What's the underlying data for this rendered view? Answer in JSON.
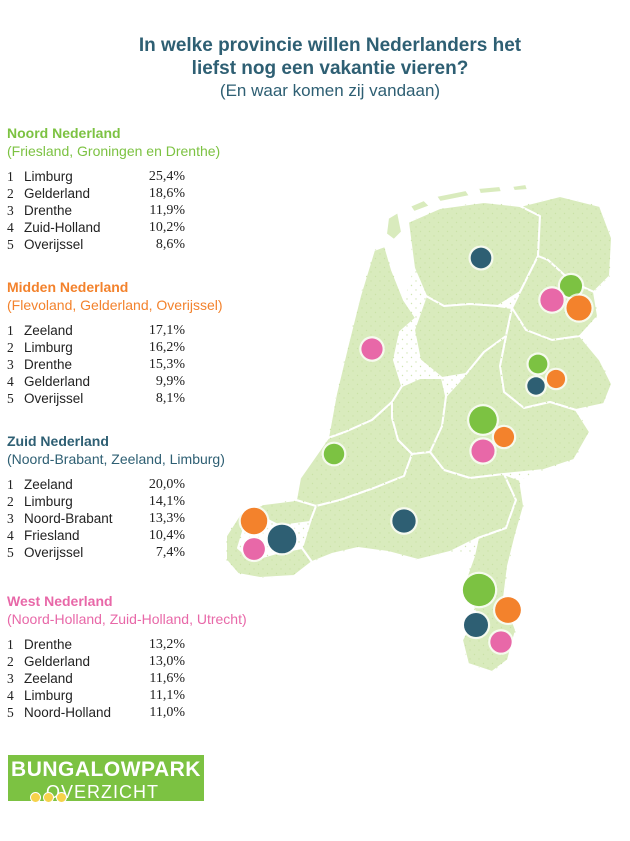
{
  "title": {
    "line1": "In welke provincie willen Nederlanders het",
    "line2": "liefst nog een vakantie vieren?",
    "line3": "(En waar komen zij vandaan)"
  },
  "colors": {
    "noord": "#7cc242",
    "midden": "#f3822c",
    "zuid": "#2e5f73",
    "west": "#e868a8",
    "land": "#d9ebbd",
    "border": "#ffffff"
  },
  "regions": [
    {
      "name": "Noord Nederland",
      "subtitle": "(Friesland, Groningen en Drenthe)",
      "color_key": "noord",
      "ranks": [
        {
          "num": "1",
          "province": "Limburg",
          "pct": "25,4%"
        },
        {
          "num": "2",
          "province": "Gelderland",
          "pct": "18,6%"
        },
        {
          "num": "3",
          "province": "Drenthe",
          "pct": "11,9%"
        },
        {
          "num": "4",
          "province": "Zuid-Holland",
          "pct": "10,2%"
        },
        {
          "num": "5",
          "province": "Overijssel",
          "pct": "8,6%"
        }
      ]
    },
    {
      "name": "Midden Nederland",
      "subtitle": "(Flevoland, Gelderland, Overijssel)",
      "color_key": "midden",
      "ranks": [
        {
          "num": "1",
          "province": "Zeeland",
          "pct": "17,1%"
        },
        {
          "num": "2",
          "province": "Limburg",
          "pct": "16,2%"
        },
        {
          "num": "3",
          "province": "Drenthe",
          "pct": "15,3%"
        },
        {
          "num": "4",
          "province": "Gelderland",
          "pct": "9,9%"
        },
        {
          "num": "5",
          "province": "Overijssel",
          "pct": "8,1%"
        }
      ]
    },
    {
      "name": "Zuid Nederland",
      "subtitle": "(Noord-Brabant, Zeeland, Limburg)",
      "color_key": "zuid",
      "ranks": [
        {
          "num": "1",
          "province": "Zeeland",
          "pct": "20,0%"
        },
        {
          "num": "2",
          "province": "Limburg",
          "pct": "14,1%"
        },
        {
          "num": "3",
          "province": "Noord-Brabant",
          "pct": "13,3%"
        },
        {
          "num": "4",
          "province": "Friesland",
          "pct": "10,4%"
        },
        {
          "num": "5",
          "province": "Overijssel",
          "pct": "7,4%"
        }
      ]
    },
    {
      "name": "West Nederland",
      "subtitle": "(Noord-Holland, Zuid-Holland, Utrecht)",
      "color_key": "west",
      "ranks": [
        {
          "num": "1",
          "province": "Drenthe",
          "pct": "13,2%"
        },
        {
          "num": "2",
          "province": "Gelderland",
          "pct": "13,0%"
        },
        {
          "num": "3",
          "province": "Zeeland",
          "pct": "11,6%"
        },
        {
          "num": "4",
          "province": "Limburg",
          "pct": "11,1%"
        },
        {
          "num": "5",
          "province": "Noord-Holland",
          "pct": "11,0%"
        }
      ]
    }
  ],
  "logo": {
    "line1": "BUNGALOWPARK",
    "line2": "OVERZICHT"
  }
}
